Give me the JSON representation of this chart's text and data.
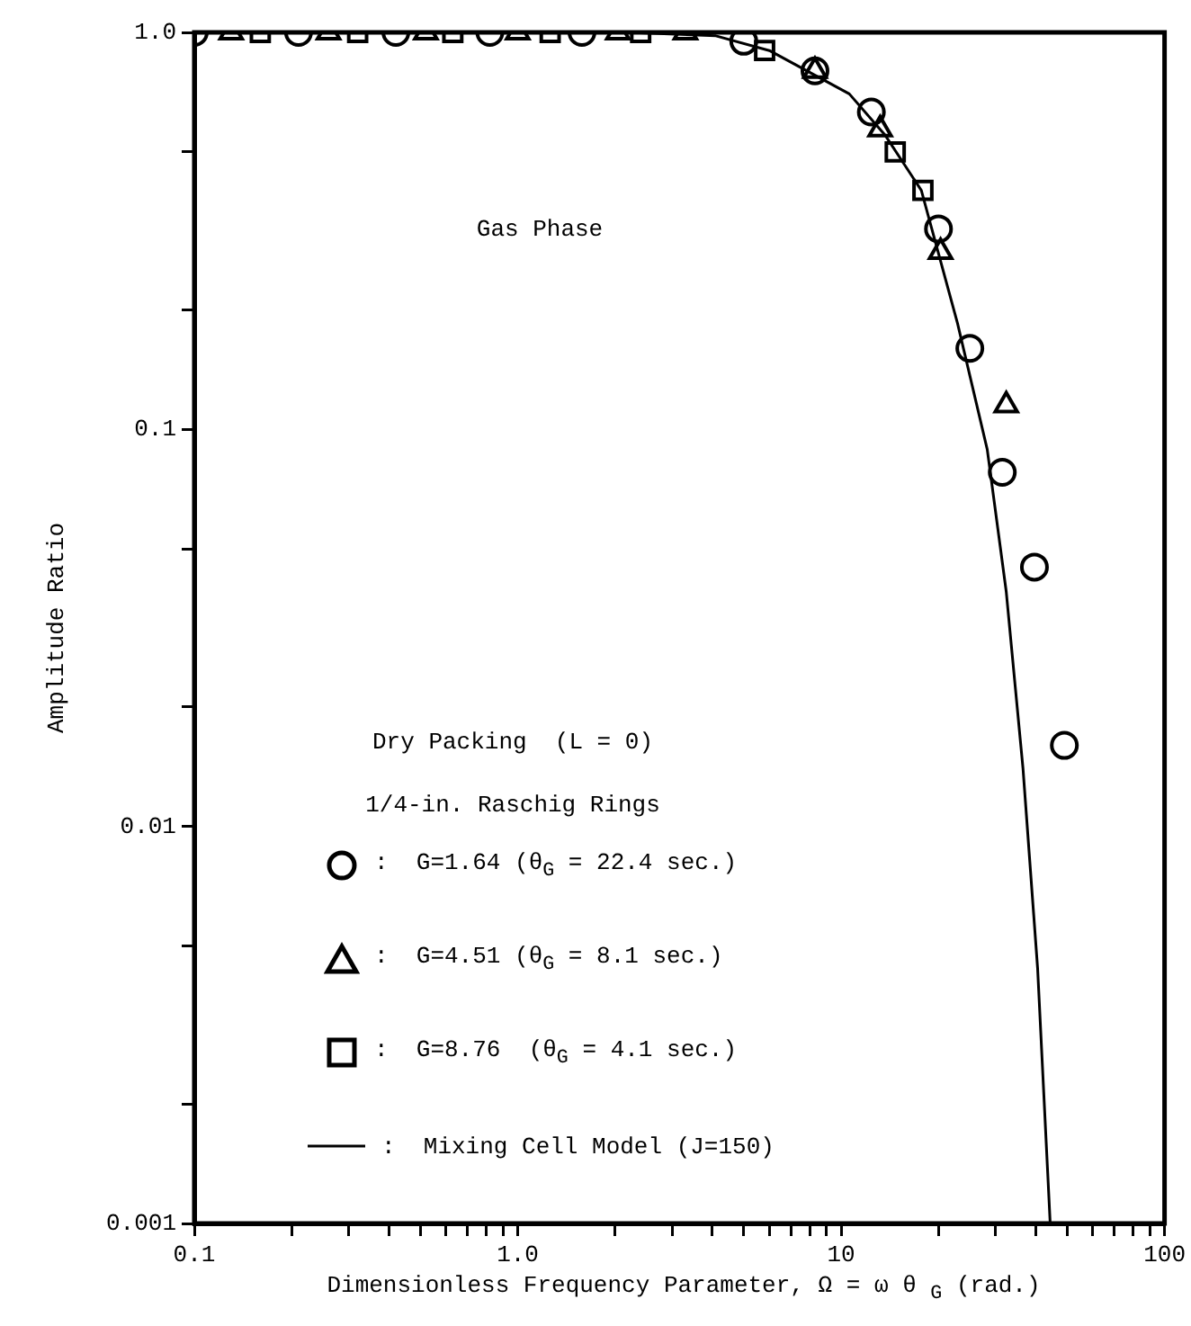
{
  "chart_data": {
    "type": "scatter",
    "xlabel": "Dimensionless Frequency Parameter, Ω = ω θ $_{G}$ (rad.)",
    "ylabel": "Amplitude Ratio",
    "log": "xy",
    "xlim": [
      0.1,
      100
    ],
    "ylim": [
      0.001,
      1
    ],
    "xticks": [
      {
        "value": 0.1,
        "label": "0.1"
      },
      {
        "value": 0.2,
        "label": null
      },
      {
        "value": 0.3,
        "label": null
      },
      {
        "value": 0.4,
        "label": null
      },
      {
        "value": 0.5,
        "label": null
      },
      {
        "value": 0.6,
        "label": null
      },
      {
        "value": 0.7,
        "label": null
      },
      {
        "value": 0.8,
        "label": null
      },
      {
        "value": 0.9,
        "label": null
      },
      {
        "value": 1,
        "label": "1.0"
      },
      {
        "value": 2,
        "label": null
      },
      {
        "value": 3,
        "label": null
      },
      {
        "value": 4,
        "label": null
      },
      {
        "value": 5,
        "label": null
      },
      {
        "value": 6,
        "label": null
      },
      {
        "value": 7,
        "label": null
      },
      {
        "value": 8,
        "label": null
      },
      {
        "value": 9,
        "label": null
      },
      10,
      {
        "value": 20,
        "label": null
      },
      {
        "value": 30,
        "label": null
      },
      {
        "value": 40,
        "label": null
      },
      {
        "value": 50,
        "label": null
      },
      {
        "value": 60,
        "label": null
      },
      {
        "value": 70,
        "label": null
      },
      {
        "value": 80,
        "label": null
      },
      {
        "value": 90,
        "label": null
      },
      100
    ],
    "yticks": [
      {
        "value": 0.001,
        "label": "0.001"
      },
      {
        "value": 0.002,
        "label": null
      },
      {
        "value": 0.005,
        "label": null
      },
      {
        "value": 0.01,
        "label": "0.01"
      },
      {
        "value": 0.02,
        "label": null
      },
      {
        "value": 0.05,
        "label": null
      },
      {
        "value": 0.1,
        "label": "0.1"
      },
      {
        "value": 0.2,
        "label": null
      },
      {
        "value": 0.5,
        "label": null
      },
      {
        "value": 1,
        "label": "1.0"
      }
    ],
    "grid": false,
    "legend": "bottom left",
    "annotations": [
      "Gas Phase",
      "Dry Packing  (L = 0)",
      "1/4-in. Raschig Rings"
    ],
    "series": [
      {
        "name": ":  G=1.64 (θ$_{G}$ = 22.4 sec.)",
        "color": "#000000",
        "marker": "circle",
        "x": [
          0.1,
          0.21,
          0.42,
          0.82,
          1.58,
          5.0,
          8.3,
          12.4,
          20,
          25,
          31.5,
          39.6,
          49
        ],
        "values": [
          1.0,
          1.0,
          1.0,
          1.0,
          1.0,
          0.95,
          0.8,
          0.63,
          0.32,
          0.16,
          0.078,
          0.045,
          0.016
        ]
      },
      {
        "name": ":  G=4.51 (θ$_{G}$ = 8.1 sec.)",
        "color": "#000000",
        "marker": "triangle",
        "x": [
          0.13,
          0.26,
          0.52,
          1.0,
          2.04,
          3.3,
          8.3,
          13.2,
          20.3,
          32.4
        ],
        "values": [
          1.0,
          1.0,
          1.0,
          1.0,
          1.0,
          1.0,
          0.8,
          0.57,
          0.28,
          0.115
        ]
      },
      {
        "name": ":  G=8.76  (θ$_{G}$ = 4.1 sec.)",
        "color": "#000000",
        "marker": "square",
        "x": [
          0.16,
          0.32,
          0.63,
          1.26,
          2.4,
          5.8,
          14.7,
          17.9
        ],
        "values": [
          1.0,
          1.0,
          1.0,
          1.0,
          1.0,
          0.9,
          0.5,
          0.4
        ]
      },
      {
        "name": ":  Mixing Cell Model (J=150)",
        "type": "line",
        "color": "#000000",
        "marker": "none",
        "x": [
          0.1,
          2.2,
          4.1,
          6.0,
          8.3,
          10.6,
          13.7,
          17.7,
          22.9,
          28.3,
          32.4,
          36.5,
          40.5,
          44.3
        ],
        "values": [
          1.0,
          1.0,
          0.98,
          0.9,
          0.78,
          0.7,
          0.55,
          0.4,
          0.185,
          0.089,
          0.039,
          0.014,
          0.0044,
          0.001
        ]
      }
    ]
  }
}
